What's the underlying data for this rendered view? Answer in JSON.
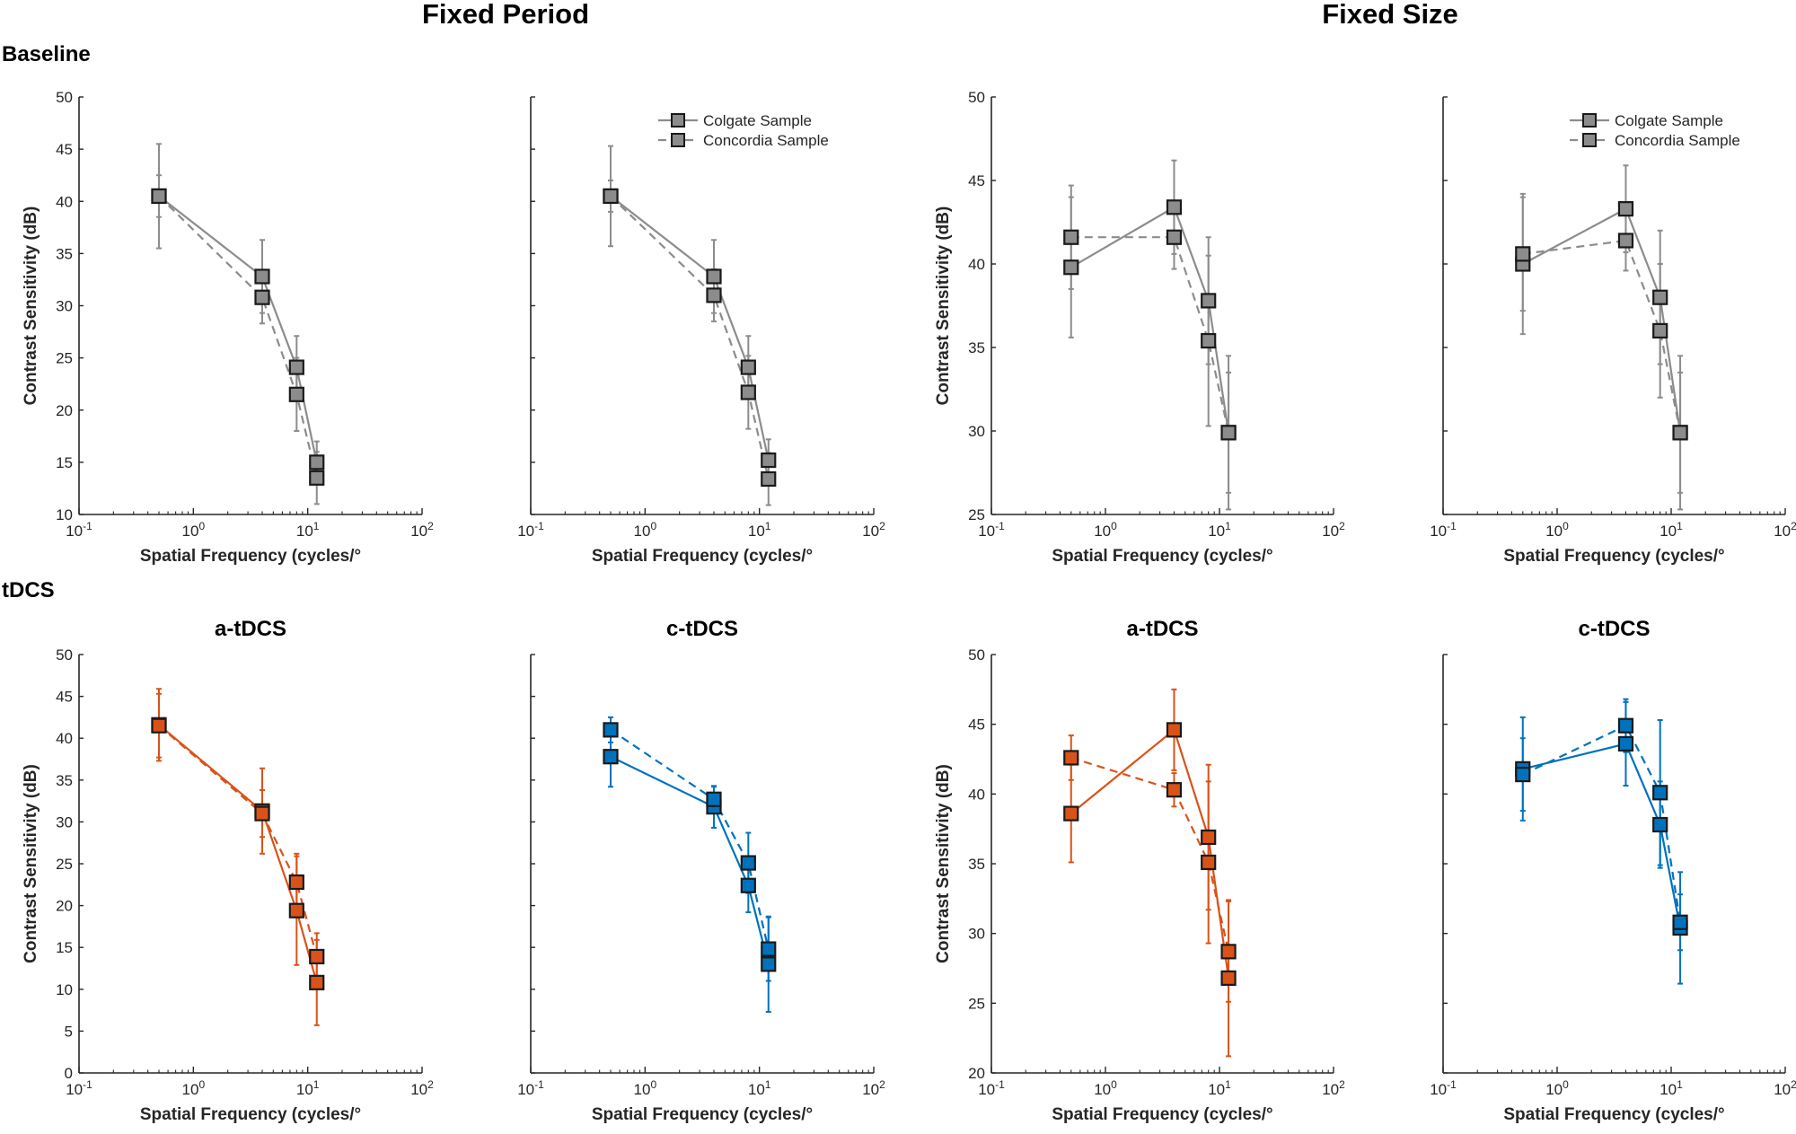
{
  "headers": {
    "fixed_period": "Fixed Period",
    "fixed_size": "Fixed Size",
    "baseline": "Baseline",
    "tdcs": "tDCS"
  },
  "colors": {
    "gray": "#8c8c8c",
    "orange": "#d95319",
    "blue": "#0072bd"
  },
  "legend": {
    "colgate": "Colgate Sample",
    "concordia": "Concordia Sample"
  },
  "chart_data": [
    {
      "id": "baseline-period-1",
      "type": "line",
      "title": "",
      "xlabel": "Spatial Frequency (cycles/°",
      "ylabel": "Contrast Sensitivity (dB)",
      "xscale": "log",
      "xlim": [
        0.1,
        100
      ],
      "ylim": [
        10,
        50
      ],
      "yticks": [
        10,
        15,
        20,
        25,
        30,
        35,
        40,
        45,
        50
      ],
      "show_ylabel": true,
      "legend": false,
      "color": "gray",
      "series": [
        {
          "name": "Colgate Sample",
          "style": "solid",
          "x": [
            0.5,
            4,
            8,
            12
          ],
          "y": [
            40.5,
            32.8,
            24.1,
            15.0
          ],
          "err": [
            5.0,
            3.5,
            3.0,
            2.0
          ]
        },
        {
          "name": "Concordia Sample",
          "style": "dashed",
          "x": [
            0.5,
            4,
            8,
            12
          ],
          "y": [
            40.5,
            30.8,
            21.5,
            13.5
          ],
          "err": [
            2.0,
            2.5,
            3.5,
            2.5
          ]
        }
      ]
    },
    {
      "id": "baseline-period-2",
      "type": "line",
      "title": "",
      "xlabel": "Spatial Frequency (cycles/°",
      "ylabel": "",
      "xscale": "log",
      "xlim": [
        0.1,
        100
      ],
      "ylim": [
        10,
        50
      ],
      "yticks": [
        10,
        15,
        20,
        25,
        30,
        35,
        40,
        45,
        50
      ],
      "show_ylabel": false,
      "legend": true,
      "color": "gray",
      "series": [
        {
          "name": "Colgate Sample",
          "style": "solid",
          "x": [
            0.5,
            4,
            8,
            12
          ],
          "y": [
            40.5,
            32.8,
            24.1,
            15.2
          ],
          "err": [
            4.8,
            3.5,
            3.0,
            2.0
          ]
        },
        {
          "name": "Concordia Sample",
          "style": "dashed",
          "x": [
            0.5,
            4,
            8,
            12
          ],
          "y": [
            40.5,
            31.0,
            21.7,
            13.4
          ],
          "err": [
            1.5,
            2.5,
            3.5,
            2.5
          ]
        }
      ]
    },
    {
      "id": "baseline-size-1",
      "type": "line",
      "title": "",
      "xlabel": "Spatial Frequency (cycles/°",
      "ylabel": "Contrast Sensitivity (dB)",
      "xscale": "log",
      "xlim": [
        0.1,
        100
      ],
      "ylim": [
        25,
        50
      ],
      "yticks": [
        25,
        30,
        35,
        40,
        45,
        50
      ],
      "show_ylabel": true,
      "legend": false,
      "color": "gray",
      "series": [
        {
          "name": "Colgate Sample",
          "style": "solid",
          "x": [
            0.5,
            4,
            8,
            12
          ],
          "y": [
            39.8,
            43.4,
            37.8,
            29.9
          ],
          "err": [
            4.2,
            2.8,
            3.8,
            4.6
          ]
        },
        {
          "name": "Concordia Sample",
          "style": "dashed",
          "x": [
            0.5,
            4,
            8,
            12
          ],
          "y": [
            41.6,
            41.6,
            35.4,
            29.9
          ],
          "err": [
            3.1,
            1.9,
            5.1,
            3.6
          ]
        }
      ]
    },
    {
      "id": "baseline-size-2",
      "type": "line",
      "title": "",
      "xlabel": "Spatial Frequency (cycles/°",
      "ylabel": "",
      "xscale": "log",
      "xlim": [
        0.1,
        100
      ],
      "ylim": [
        25,
        50
      ],
      "yticks": [
        25,
        30,
        35,
        40,
        45,
        50
      ],
      "show_ylabel": false,
      "legend": true,
      "color": "gray",
      "series": [
        {
          "name": "Colgate Sample",
          "style": "solid",
          "x": [
            0.5,
            4,
            8,
            12
          ],
          "y": [
            40.0,
            43.3,
            38.0,
            29.9
          ],
          "err": [
            4.2,
            2.6,
            4.0,
            4.6
          ]
        },
        {
          "name": "Concordia Sample",
          "style": "dashed",
          "x": [
            0.5,
            4,
            8,
            12
          ],
          "y": [
            40.6,
            41.4,
            36.0,
            29.9
          ],
          "err": [
            3.4,
            1.8,
            4.0,
            3.6
          ]
        }
      ]
    },
    {
      "id": "tdcs-period-a",
      "type": "line",
      "title": "a-tDCS",
      "xlabel": "Spatial Frequency (cycles/°",
      "ylabel": "Contrast Sensitivity (dB)",
      "xscale": "log",
      "xlim": [
        0.1,
        100
      ],
      "ylim": [
        0,
        50
      ],
      "yticks": [
        0,
        5,
        10,
        15,
        20,
        25,
        30,
        35,
        40,
        45,
        50
      ],
      "show_ylabel": true,
      "legend": false,
      "color": "orange",
      "series": [
        {
          "name": "Colgate Sample",
          "style": "solid",
          "x": [
            0.5,
            4,
            8,
            12
          ],
          "y": [
            41.6,
            31.3,
            19.4,
            10.8
          ],
          "err": [
            4.3,
            5.1,
            6.5,
            5.1
          ]
        },
        {
          "name": "Concordia Sample",
          "style": "dashed",
          "x": [
            0.5,
            4,
            8,
            12
          ],
          "y": [
            41.5,
            31.0,
            22.8,
            13.9
          ],
          "err": [
            3.8,
            2.8,
            3.4,
            2.8
          ]
        }
      ]
    },
    {
      "id": "tdcs-period-c",
      "type": "line",
      "title": "c-tDCS",
      "xlabel": "Spatial Frequency (cycles/°",
      "ylabel": "",
      "xscale": "log",
      "xlim": [
        0.1,
        100
      ],
      "ylim": [
        0,
        50
      ],
      "yticks": [
        0,
        5,
        10,
        15,
        20,
        25,
        30,
        35,
        40,
        45,
        50
      ],
      "show_ylabel": false,
      "legend": false,
      "color": "blue",
      "series": [
        {
          "name": "Colgate Sample",
          "style": "solid",
          "x": [
            0.5,
            4,
            8,
            12
          ],
          "y": [
            37.8,
            31.8,
            22.4,
            13.0
          ],
          "err": [
            3.6,
            2.5,
            3.2,
            5.7
          ]
        },
        {
          "name": "Concordia Sample",
          "style": "dashed",
          "x": [
            0.5,
            4,
            8,
            12
          ],
          "y": [
            41.0,
            32.7,
            25.1,
            14.8
          ],
          "err": [
            1.5,
            1.5,
            3.6,
            3.8
          ]
        }
      ]
    },
    {
      "id": "tdcs-size-a",
      "type": "line",
      "title": "a-tDCS",
      "xlabel": "Spatial Frequency (cycles/°",
      "ylabel": "Contrast Sensitivity (dB)",
      "xscale": "log",
      "xlim": [
        0.1,
        100
      ],
      "ylim": [
        20,
        50
      ],
      "yticks": [
        20,
        25,
        30,
        35,
        40,
        45,
        50
      ],
      "show_ylabel": true,
      "legend": false,
      "color": "orange",
      "series": [
        {
          "name": "Colgate Sample",
          "style": "solid",
          "x": [
            0.5,
            4,
            8,
            12
          ],
          "y": [
            38.6,
            44.6,
            36.9,
            26.8
          ],
          "err": [
            3.5,
            2.9,
            5.2,
            5.6
          ]
        },
        {
          "name": "Concordia Sample",
          "style": "dashed",
          "x": [
            0.5,
            4,
            8,
            12
          ],
          "y": [
            42.6,
            40.3,
            35.1,
            28.7
          ],
          "err": [
            1.6,
            1.2,
            5.8,
            3.6
          ]
        }
      ]
    },
    {
      "id": "tdcs-size-c",
      "type": "line",
      "title": "c-tDCS",
      "xlabel": "Spatial Frequency (cycles/°",
      "ylabel": "",
      "xscale": "log",
      "xlim": [
        0.1,
        100
      ],
      "ylim": [
        20,
        50
      ],
      "yticks": [
        20,
        25,
        30,
        35,
        40,
        45,
        50
      ],
      "show_ylabel": false,
      "legend": false,
      "color": "blue",
      "series": [
        {
          "name": "Colgate Sample",
          "style": "solid",
          "x": [
            0.5,
            4,
            8,
            12
          ],
          "y": [
            41.8,
            43.6,
            37.8,
            30.4
          ],
          "err": [
            3.7,
            3.0,
            3.1,
            4.0
          ]
        },
        {
          "name": "Concordia Sample",
          "style": "dashed",
          "x": [
            0.5,
            4,
            8,
            12
          ],
          "y": [
            41.4,
            44.9,
            40.1,
            30.8
          ],
          "err": [
            2.6,
            1.9,
            5.2,
            2.0
          ]
        }
      ]
    }
  ]
}
